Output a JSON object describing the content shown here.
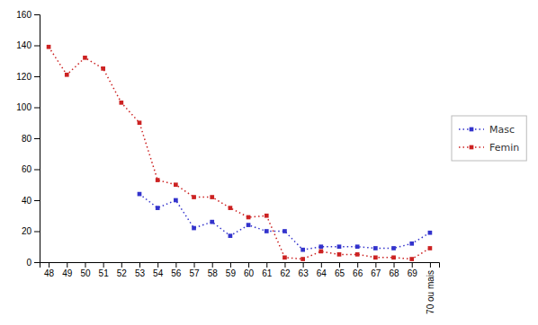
{
  "chart_data": {
    "type": "line",
    "categories": [
      "48",
      "49",
      "50",
      "51",
      "52",
      "53",
      "54",
      "56",
      "57",
      "58",
      "59",
      "60",
      "61",
      "62",
      "63",
      "64",
      "65",
      "66",
      "67",
      "68",
      "69",
      "70 ou mais"
    ],
    "series": [
      {
        "name": "Masc",
        "color": "#3333cc",
        "marker": "square",
        "line_style": "dotted",
        "values": [
          null,
          null,
          null,
          null,
          null,
          44,
          35,
          40,
          22,
          26,
          17,
          24,
          20,
          20,
          8,
          10,
          10,
          10,
          9,
          9,
          12,
          19
        ]
      },
      {
        "name": "Femin",
        "color": "#cc2222",
        "marker": "square",
        "line_style": "dotted",
        "values": [
          139,
          121,
          132,
          125,
          103,
          90,
          53,
          50,
          42,
          42,
          35,
          29,
          30,
          3,
          2,
          7,
          5,
          5,
          3,
          3,
          2,
          9
        ]
      }
    ],
    "ylim": [
      0,
      160
    ],
    "yticks": [
      0,
      20,
      40,
      60,
      80,
      100,
      120,
      140,
      160
    ],
    "grid": false,
    "legend": "right"
  }
}
